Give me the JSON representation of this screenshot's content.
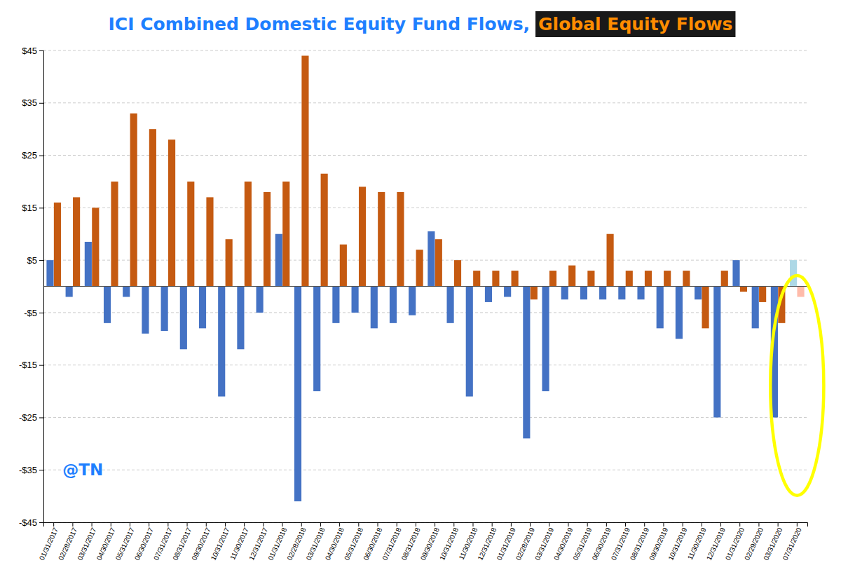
{
  "chart_data": {
    "type": "bar",
    "title": [
      "ICI Combined Domestic Equity Fund Flows,",
      "Global Equity Flows"
    ],
    "annotations": [
      "@TN"
    ],
    "categories": [
      "01/31/2017",
      "02/28/2017",
      "03/31/2017",
      "04/30/2017",
      "05/31/2017",
      "06/30/2017",
      "07/31/2017",
      "08/31/2017",
      "09/30/2017",
      "10/31/2017",
      "11/30/2017",
      "12/31/2017",
      "01/31/2018",
      "02/28/2018",
      "03/31/2018",
      "04/30/2018",
      "05/31/2018",
      "06/30/2018",
      "07/31/2018",
      "08/31/2018",
      "09/30/2018",
      "10/31/2018",
      "11/30/2018",
      "12/31/2018",
      "01/31/2019",
      "02/28/2019",
      "03/31/2019",
      "04/30/2019",
      "05/31/2019",
      "06/30/2019",
      "07/31/2019",
      "08/31/2019",
      "09/30/2019",
      "10/31/2019",
      "11/30/2019",
      "12/31/2019",
      "01/31/2020",
      "02/29/2020",
      "03/31/2020",
      "07/31/2020"
    ],
    "series": [
      {
        "values": [
          5.0,
          -2.0,
          8.5,
          -7.0,
          -2.0,
          -9.0,
          -8.5,
          -12.0,
          -8.0,
          -21.0,
          -12.0,
          -5.0,
          10.0,
          -41.0,
          -20.0,
          -7.0,
          -5.0,
          -8.0,
          -7.0,
          -5.5,
          10.5,
          -7.0,
          -21.0,
          -3.0,
          -2.0,
          -29.0,
          -20.0,
          -2.5,
          -2.5,
          -2.5,
          -2.5,
          -2.5,
          -8.0,
          -10.0,
          -2.5,
          -25.0,
          5.0,
          -8.0,
          -25.0,
          5.0
        ],
        "colors": [
          "#4472C4",
          "#4472C4",
          "#4472C4",
          "#4472C4",
          "#4472C4",
          "#4472C4",
          "#4472C4",
          "#4472C4",
          "#4472C4",
          "#4472C4",
          "#4472C4",
          "#4472C4",
          "#4472C4",
          "#4472C4",
          "#4472C4",
          "#4472C4",
          "#4472C4",
          "#4472C4",
          "#4472C4",
          "#4472C4",
          "#4472C4",
          "#4472C4",
          "#4472C4",
          "#4472C4",
          "#4472C4",
          "#4472C4",
          "#4472C4",
          "#4472C4",
          "#4472C4",
          "#4472C4",
          "#4472C4",
          "#4472C4",
          "#4472C4",
          "#4472C4",
          "#4472C4",
          "#4472C4",
          "#4472C4",
          "#4472C4",
          "#4472C4",
          "#ADD8E6"
        ]
      },
      {
        "values": [
          16.0,
          17.0,
          15.0,
          20.0,
          33.0,
          30.0,
          28.0,
          20.0,
          17.0,
          9.0,
          20.0,
          18.0,
          20.0,
          44.0,
          21.5,
          8.0,
          19.0,
          18.0,
          18.0,
          7.0,
          9.0,
          5.0,
          3.0,
          3.0,
          3.0,
          -2.5,
          3.0,
          4.0,
          3.0,
          10.0,
          3.0,
          3.0,
          3.0,
          3.0,
          -8.0,
          3.0,
          -1.0,
          -3.0,
          -7.0,
          -2.0
        ],
        "colors": [
          "#C55A11",
          "#C55A11",
          "#C55A11",
          "#C55A11",
          "#C55A11",
          "#C55A11",
          "#C55A11",
          "#C55A11",
          "#C55A11",
          "#C55A11",
          "#C55A11",
          "#C55A11",
          "#C55A11",
          "#C55A11",
          "#C55A11",
          "#C55A11",
          "#C55A11",
          "#C55A11",
          "#C55A11",
          "#C55A11",
          "#C55A11",
          "#C55A11",
          "#C55A11",
          "#C55A11",
          "#C55A11",
          "#C55A11",
          "#C55A11",
          "#C55A11",
          "#C55A11",
          "#C55A11",
          "#C55A11",
          "#C55A11",
          "#C55A11",
          "#C55A11",
          "#C55A11",
          "#C55A11",
          "#C55A11",
          "#C55A11",
          "#C55A11",
          "#FFBBAA"
        ]
      }
    ],
    "ylim": [
      -45,
      45
    ],
    "yticks": [
      {
        "value": -45,
        "label": "-$45"
      },
      {
        "value": -35,
        "label": "-$35"
      },
      {
        "value": -25,
        "label": "-$25"
      },
      {
        "value": -15,
        "label": "-$15"
      },
      {
        "value": -5,
        "label": "-$5"
      },
      {
        "value": 5,
        "label": "$5"
      },
      {
        "value": 15,
        "label": "$15"
      },
      {
        "value": 25,
        "label": "$25"
      },
      {
        "value": 35,
        "label": "$35"
      },
      {
        "value": 45,
        "label": "$45"
      }
    ],
    "grid": true
  }
}
